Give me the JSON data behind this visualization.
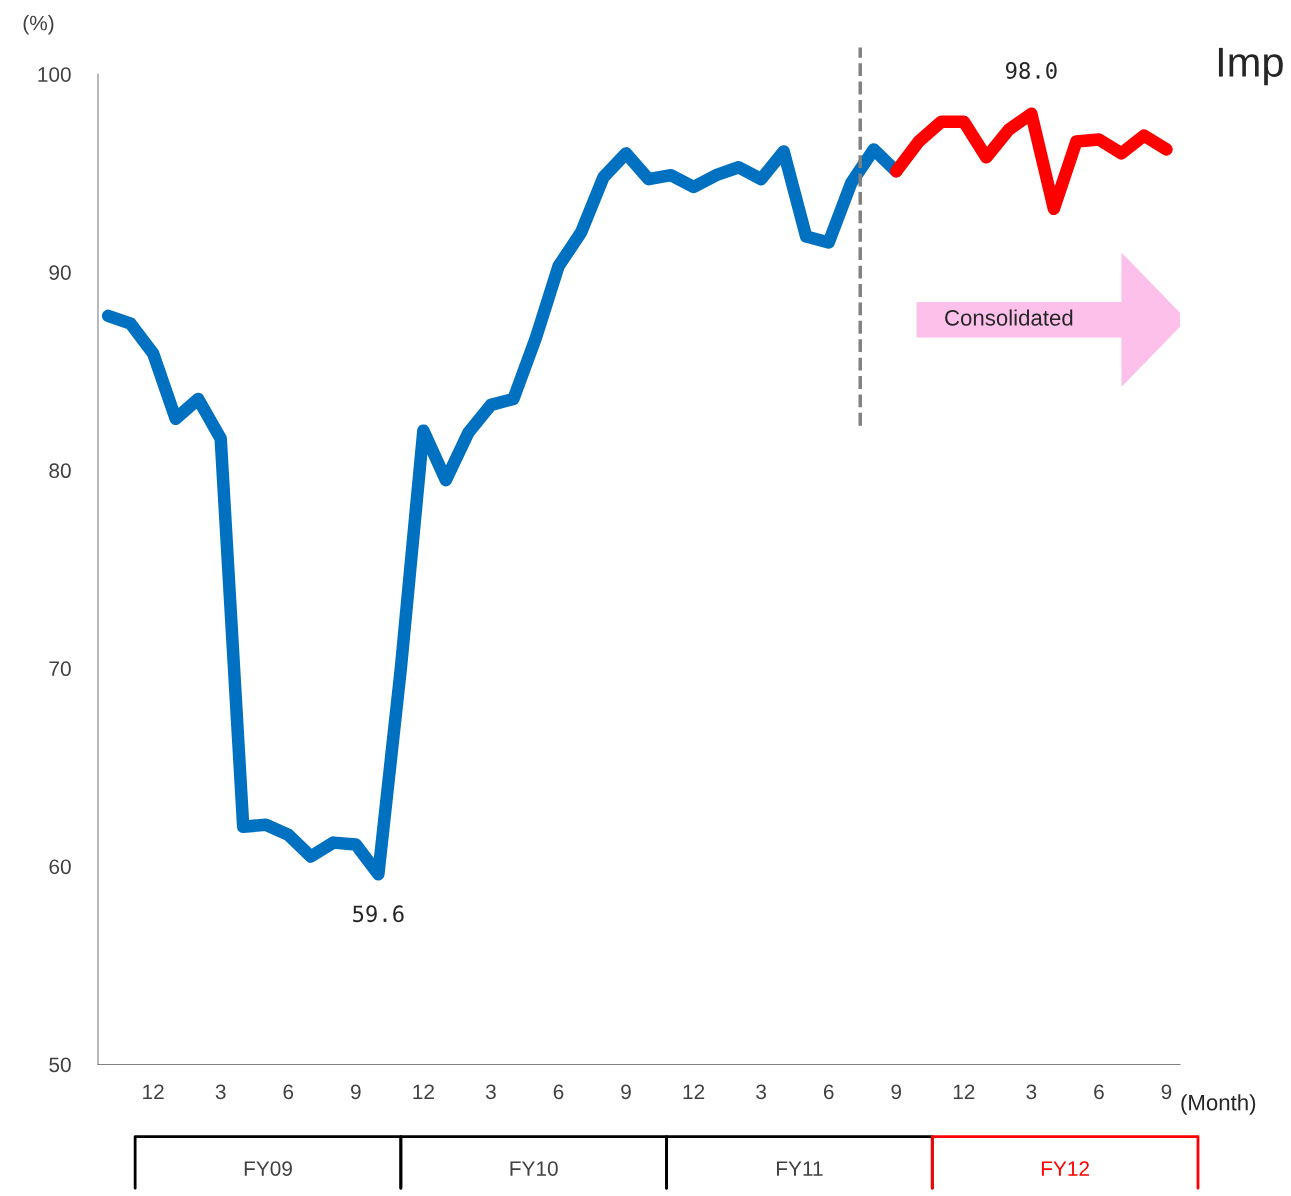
{
  "chart_data": {
    "type": "line",
    "ylabel": "(%)",
    "xlabel": "(Month)",
    "categories": [
      null,
      null,
      "12",
      null,
      null,
      "3",
      null,
      null,
      "6",
      null,
      null,
      "9",
      null,
      null,
      "12",
      null,
      null,
      "3",
      null,
      null,
      "6",
      null,
      null,
      "9",
      null,
      null,
      "12",
      null,
      null,
      "3",
      null,
      null,
      "6",
      null,
      null,
      "9",
      null,
      null,
      "12",
      null,
      null,
      "3",
      null,
      null,
      "6",
      null,
      null,
      "9"
    ],
    "series": [
      {
        "color": "#0070c0",
        "values": [
          87.8,
          87.4,
          85.9,
          82.6,
          83.6,
          81.6,
          62.0,
          62.1,
          61.6,
          60.5,
          61.2,
          61.1,
          59.6,
          70.0,
          82.0,
          79.5,
          81.9,
          83.3,
          83.6,
          86.7,
          90.3,
          92.0,
          94.8,
          96.0,
          94.7,
          94.9,
          94.3,
          94.9,
          95.3,
          94.7,
          96.1,
          91.8,
          91.5,
          94.5,
          96.2,
          95.1,
          null,
          null,
          null,
          null,
          null,
          null,
          null,
          null,
          null,
          null,
          null,
          null
        ],
        "value_labels": [
          null,
          null,
          null,
          null,
          null,
          null,
          null,
          null,
          null,
          null,
          null,
          null,
          "59.6",
          null,
          null,
          null,
          null,
          null,
          null,
          null,
          null,
          null,
          null,
          null,
          null,
          null,
          null,
          null,
          null,
          null,
          null,
          null,
          null,
          null,
          null,
          null,
          null,
          null,
          null,
          null,
          null,
          null,
          null,
          null,
          null,
          null,
          null,
          null
        ]
      },
      {
        "color": "#ff0000",
        "values": [
          null,
          null,
          null,
          null,
          null,
          null,
          null,
          null,
          null,
          null,
          null,
          null,
          null,
          null,
          null,
          null,
          null,
          null,
          null,
          null,
          null,
          null,
          null,
          null,
          null,
          null,
          null,
          null,
          null,
          null,
          null,
          null,
          null,
          null,
          null,
          95.1,
          96.6,
          97.6,
          97.6,
          95.8,
          97.2,
          98.0,
          93.2,
          96.6,
          96.7,
          96.0,
          96.9,
          96.2
        ],
        "value_labels": [
          null,
          null,
          null,
          null,
          null,
          null,
          null,
          null,
          null,
          null,
          null,
          null,
          null,
          null,
          null,
          null,
          null,
          null,
          null,
          null,
          null,
          null,
          null,
          null,
          null,
          null,
          null,
          null,
          null,
          null,
          null,
          null,
          null,
          null,
          null,
          null,
          null,
          null,
          null,
          null,
          null,
          "98.0",
          null,
          null,
          null,
          null,
          null,
          null
        ]
      }
    ],
    "ylim": [
      50,
      100
    ],
    "yticks": [
      50,
      60,
      70,
      80,
      90,
      100
    ],
    "grid": false,
    "marker": "none",
    "line_style": "solid",
    "annotations": [
      "Consolidated",
      "Imp",
      "FY09",
      "FY10",
      "FY11",
      "FY12"
    ]
  }
}
